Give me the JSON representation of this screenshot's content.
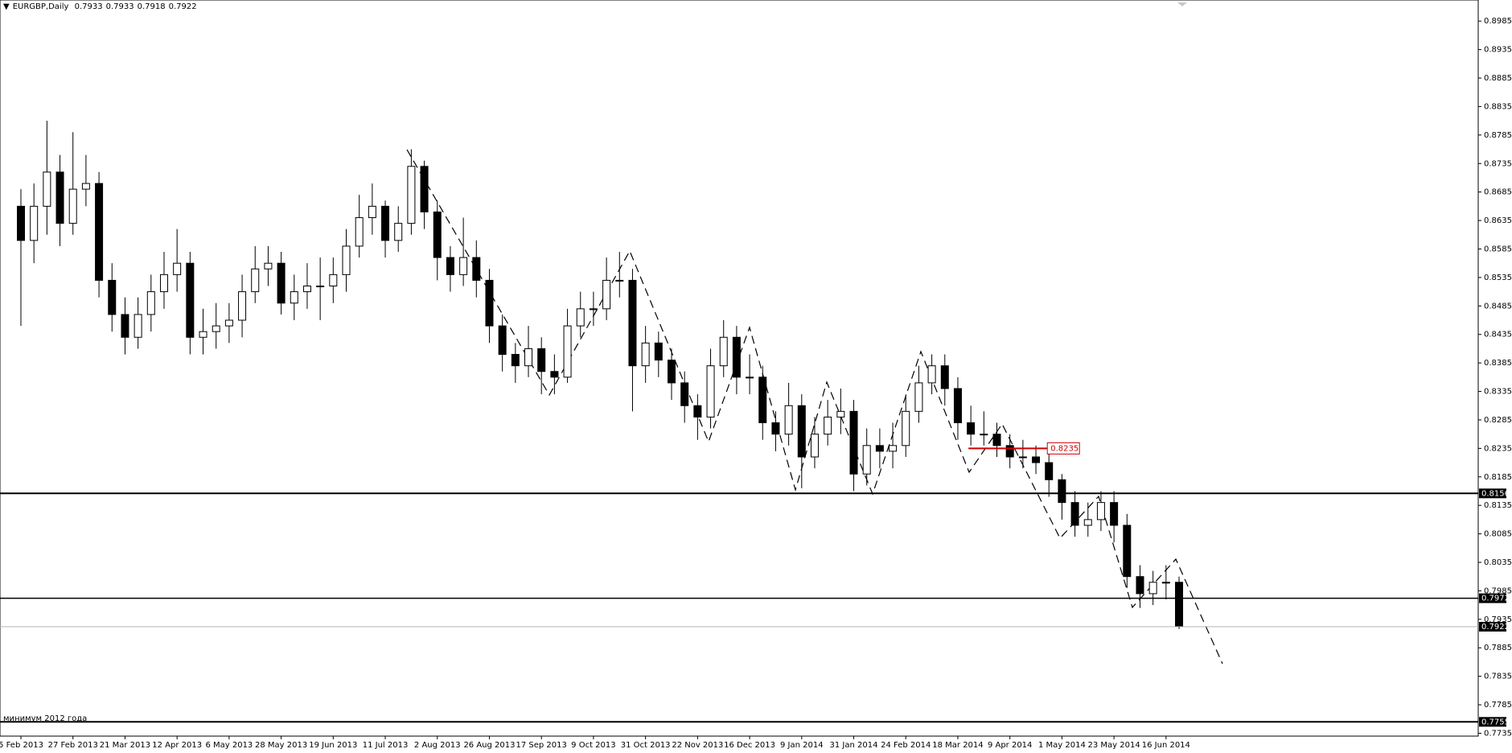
{
  "chart_data": {
    "type": "candlestick",
    "header": {
      "symbol": "EURGBP,Daily",
      "quote": [
        0.7933,
        0.7933,
        0.7918,
        0.7922
      ]
    },
    "ylim": [
      0.773,
      0.9022
    ],
    "yticks": [
      0.8985,
      0.8935,
      0.8885,
      0.8835,
      0.8785,
      0.8735,
      0.8685,
      0.8635,
      0.8585,
      0.8535,
      0.8485,
      0.8435,
      0.8385,
      0.8335,
      0.8285,
      0.8235,
      0.8185,
      0.8135,
      0.8085,
      0.8035,
      0.7985,
      0.7935,
      0.7885,
      0.7835,
      0.7785,
      0.7735
    ],
    "categories": [
      "5 Feb 2013",
      null,
      null,
      null,
      "27 Feb 2013",
      null,
      null,
      null,
      "21 Mar 2013",
      null,
      null,
      null,
      "12 Apr 2013",
      null,
      null,
      null,
      "6 May 2013",
      null,
      null,
      null,
      "28 May 2013",
      null,
      null,
      null,
      "19 Jun 2013",
      null,
      null,
      null,
      "11 Jul 2013",
      null,
      null,
      null,
      "2 Aug 2013",
      null,
      null,
      null,
      "26 Aug 2013",
      null,
      null,
      null,
      "17 Sep 2013",
      null,
      null,
      null,
      "9 Oct 2013",
      null,
      null,
      null,
      "31 Oct 2013",
      null,
      null,
      null,
      "22 Nov 2013",
      null,
      null,
      null,
      "16 Dec 2013",
      null,
      null,
      null,
      "9 Jan 2014",
      null,
      null,
      null,
      "31 Jan 2014",
      null,
      null,
      null,
      "24 Feb 2014",
      null,
      null,
      null,
      "18 Mar 2014",
      null,
      null,
      null,
      "9 Apr 2014",
      null,
      null,
      null,
      "1 May 2014",
      null,
      null,
      null,
      "23 May 2014",
      null,
      null,
      null,
      "16 Jun 2014",
      null
    ],
    "ohlc": [
      [
        0.866,
        0.869,
        0.845,
        0.86
      ],
      [
        0.86,
        0.87,
        0.856,
        0.866
      ],
      [
        0.866,
        0.881,
        0.861,
        0.872
      ],
      [
        0.872,
        0.875,
        0.859,
        0.863
      ],
      [
        0.863,
        0.879,
        0.861,
        0.869
      ],
      [
        0.869,
        0.875,
        0.866,
        0.87
      ],
      [
        0.87,
        0.872,
        0.85,
        0.853
      ],
      [
        0.853,
        0.856,
        0.844,
        0.847
      ],
      [
        0.847,
        0.85,
        0.84,
        0.843
      ],
      [
        0.843,
        0.85,
        0.841,
        0.847
      ],
      [
        0.847,
        0.854,
        0.844,
        0.851
      ],
      [
        0.851,
        0.858,
        0.848,
        0.854
      ],
      [
        0.854,
        0.862,
        0.851,
        0.856
      ],
      [
        0.856,
        0.858,
        0.84,
        0.843
      ],
      [
        0.843,
        0.848,
        0.84,
        0.844
      ],
      [
        0.844,
        0.849,
        0.841,
        0.845
      ],
      [
        0.845,
        0.849,
        0.842,
        0.846
      ],
      [
        0.846,
        0.854,
        0.843,
        0.851
      ],
      [
        0.851,
        0.859,
        0.849,
        0.855
      ],
      [
        0.855,
        0.859,
        0.852,
        0.856
      ],
      [
        0.856,
        0.858,
        0.847,
        0.849
      ],
      [
        0.849,
        0.854,
        0.846,
        0.851
      ],
      [
        0.851,
        0.856,
        0.848,
        0.852
      ],
      [
        0.852,
        0.857,
        0.846,
        0.852
      ],
      [
        0.852,
        0.857,
        0.849,
        0.854
      ],
      [
        0.854,
        0.862,
        0.851,
        0.859
      ],
      [
        0.859,
        0.868,
        0.857,
        0.864
      ],
      [
        0.864,
        0.87,
        0.861,
        0.866
      ],
      [
        0.866,
        0.867,
        0.857,
        0.86
      ],
      [
        0.86,
        0.866,
        0.858,
        0.863
      ],
      [
        0.863,
        0.876,
        0.861,
        0.873
      ],
      [
        0.873,
        0.874,
        0.862,
        0.865
      ],
      [
        0.865,
        0.867,
        0.853,
        0.857
      ],
      [
        0.857,
        0.859,
        0.851,
        0.854
      ],
      [
        0.854,
        0.864,
        0.852,
        0.857
      ],
      [
        0.857,
        0.86,
        0.85,
        0.853
      ],
      [
        0.853,
        0.855,
        0.842,
        0.845
      ],
      [
        0.845,
        0.847,
        0.837,
        0.84
      ],
      [
        0.84,
        0.842,
        0.835,
        0.838
      ],
      [
        0.838,
        0.845,
        0.836,
        0.841
      ],
      [
        0.841,
        0.843,
        0.833,
        0.837
      ],
      [
        0.837,
        0.84,
        0.833,
        0.836
      ],
      [
        0.836,
        0.848,
        0.835,
        0.845
      ],
      [
        0.845,
        0.851,
        0.843,
        0.848
      ],
      [
        0.848,
        0.851,
        0.845,
        0.848
      ],
      [
        0.848,
        0.857,
        0.846,
        0.853
      ],
      [
        0.853,
        0.858,
        0.85,
        0.853
      ],
      [
        0.853,
        0.855,
        0.83,
        0.838
      ],
      [
        0.838,
        0.845,
        0.835,
        0.842
      ],
      [
        0.842,
        0.844,
        0.836,
        0.839
      ],
      [
        0.839,
        0.841,
        0.832,
        0.835
      ],
      [
        0.835,
        0.837,
        0.828,
        0.831
      ],
      [
        0.831,
        0.833,
        0.825,
        0.829
      ],
      [
        0.829,
        0.841,
        0.827,
        0.838
      ],
      [
        0.838,
        0.846,
        0.836,
        0.843
      ],
      [
        0.843,
        0.845,
        0.833,
        0.836
      ],
      [
        0.836,
        0.84,
        0.833,
        0.836
      ],
      [
        0.836,
        0.838,
        0.825,
        0.828
      ],
      [
        0.828,
        0.83,
        0.823,
        0.826
      ],
      [
        0.826,
        0.835,
        0.824,
        0.831
      ],
      [
        0.831,
        0.833,
        0.8165,
        0.822
      ],
      [
        0.822,
        0.829,
        0.82,
        0.826
      ],
      [
        0.826,
        0.832,
        0.824,
        0.829
      ],
      [
        0.829,
        0.834,
        0.826,
        0.83
      ],
      [
        0.83,
        0.832,
        0.816,
        0.819
      ],
      [
        0.819,
        0.827,
        0.817,
        0.824
      ],
      [
        0.824,
        0.827,
        0.82,
        0.823
      ],
      [
        0.823,
        0.828,
        0.82,
        0.824
      ],
      [
        0.824,
        0.833,
        0.822,
        0.83
      ],
      [
        0.83,
        0.838,
        0.828,
        0.835
      ],
      [
        0.835,
        0.84,
        0.833,
        0.838
      ],
      [
        0.838,
        0.84,
        0.831,
        0.834
      ],
      [
        0.834,
        0.836,
        0.825,
        0.828
      ],
      [
        0.828,
        0.831,
        0.824,
        0.826
      ],
      [
        0.826,
        0.83,
        0.824,
        0.826
      ],
      [
        0.826,
        0.828,
        0.822,
        0.824
      ],
      [
        0.824,
        0.826,
        0.82,
        0.822
      ],
      [
        0.822,
        0.825,
        0.82,
        0.822
      ],
      [
        0.822,
        0.824,
        0.819,
        0.821
      ],
      [
        0.821,
        0.823,
        0.815,
        0.818
      ],
      [
        0.818,
        0.819,
        0.811,
        0.814
      ],
      [
        0.814,
        0.816,
        0.808,
        0.81
      ],
      [
        0.81,
        0.814,
        0.808,
        0.811
      ],
      [
        0.811,
        0.816,
        0.809,
        0.814
      ],
      [
        0.814,
        0.816,
        0.807,
        0.81
      ],
      [
        0.81,
        0.812,
        0.799,
        0.801
      ],
      [
        0.801,
        0.803,
        0.7955,
        0.798
      ],
      [
        0.798,
        0.802,
        0.796,
        0.8
      ],
      [
        0.8,
        0.803,
        0.797,
        0.8
      ],
      [
        0.8,
        0.801,
        0.7918,
        0.7922
      ]
    ],
    "levels": [
      {
        "value": 0.8156,
        "color": "#000000",
        "width": 2
      },
      {
        "value": 0.7972,
        "color": "#000000",
        "width": 1.6
      },
      {
        "value": 0.7922,
        "color": "#b4b4b4",
        "width": 1
      },
      {
        "value": 0.7755,
        "color": "#000000",
        "width": 2
      }
    ],
    "marker": {
      "value": 0.8235,
      "color": "#cc0000"
    },
    "annotation": "минимум 2012 года"
  }
}
